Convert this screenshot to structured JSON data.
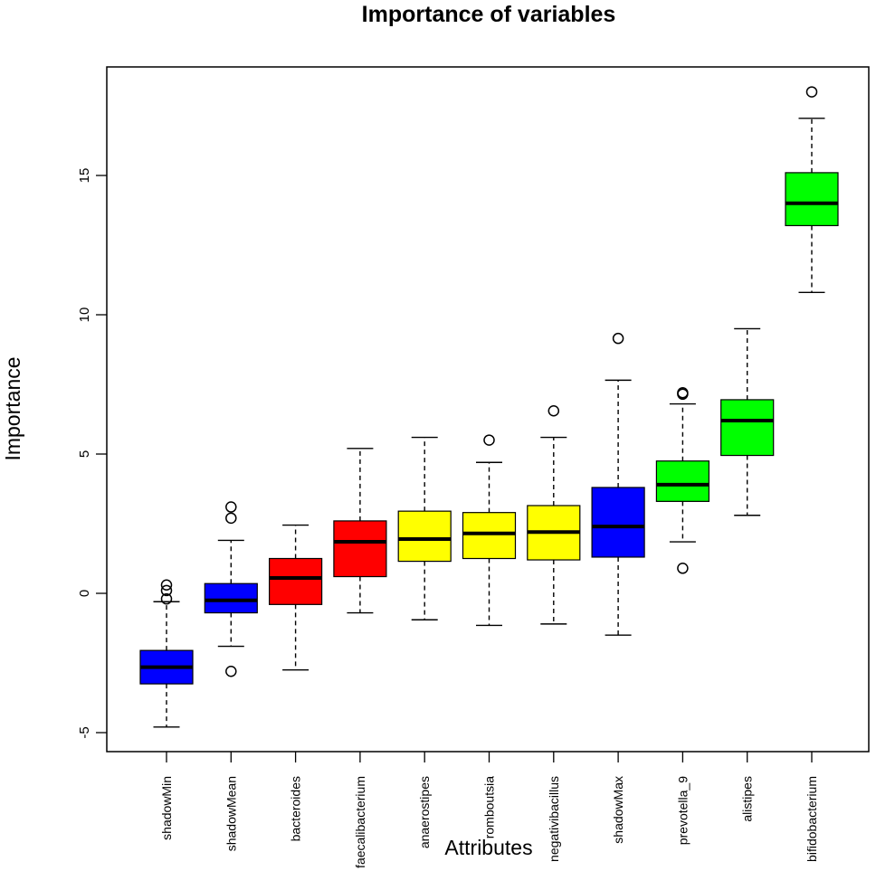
{
  "chart_data": {
    "type": "boxplot",
    "title": "Importance of variables",
    "xlabel": "Attributes",
    "ylabel": "Importance",
    "ylim": [
      -5.5,
      19
    ],
    "yticks": [
      -5,
      0,
      5,
      10,
      15
    ],
    "grid": false,
    "colors": {
      "shadow": "#0000ff",
      "rejected": "#ff0000",
      "tentative": "#ffff00",
      "confirmed": "#00ff00"
    },
    "boxes": [
      {
        "name": "shadowMin",
        "color": "#0000ff",
        "whisker_low": -4.8,
        "q1": -3.25,
        "median": -2.65,
        "q3": -2.05,
        "whisker_high": -0.3,
        "outliers": [
          -0.2,
          0.1,
          0.3
        ]
      },
      {
        "name": "shadowMean",
        "color": "#0000ff",
        "whisker_low": -1.9,
        "q1": -0.7,
        "median": -0.25,
        "q3": 0.35,
        "whisker_high": 1.9,
        "outliers": [
          -2.8,
          2.7,
          3.1
        ]
      },
      {
        "name": "bacteroides",
        "color": "#ff0000",
        "whisker_low": -2.75,
        "q1": -0.4,
        "median": 0.55,
        "q3": 1.25,
        "whisker_high": 2.45,
        "outliers": []
      },
      {
        "name": "faecalibacterium",
        "color": "#ff0000",
        "whisker_low": -0.7,
        "q1": 0.6,
        "median": 1.85,
        "q3": 2.6,
        "whisker_high": 5.2,
        "outliers": []
      },
      {
        "name": "anaerostipes",
        "color": "#ffff00",
        "whisker_low": -0.95,
        "q1": 1.15,
        "median": 1.95,
        "q3": 2.95,
        "whisker_high": 5.6,
        "outliers": []
      },
      {
        "name": "romboutsia",
        "color": "#ffff00",
        "whisker_low": -1.15,
        "q1": 1.25,
        "median": 2.15,
        "q3": 2.9,
        "whisker_high": 4.7,
        "outliers": [
          5.5
        ]
      },
      {
        "name": "negativibacillus",
        "color": "#ffff00",
        "whisker_low": -1.1,
        "q1": 1.2,
        "median": 2.2,
        "q3": 3.15,
        "whisker_high": 5.6,
        "outliers": [
          6.55
        ]
      },
      {
        "name": "shadowMax",
        "color": "#0000ff",
        "whisker_low": -1.5,
        "q1": 1.3,
        "median": 2.4,
        "q3": 3.8,
        "whisker_high": 7.65,
        "outliers": [
          9.15
        ]
      },
      {
        "name": "prevotella_9",
        "color": "#00ff00",
        "whisker_low": 1.85,
        "q1": 3.3,
        "median": 3.9,
        "q3": 4.75,
        "whisker_high": 6.8,
        "outliers": [
          0.9,
          7.15,
          7.2
        ]
      },
      {
        "name": "alistipes",
        "color": "#00ff00",
        "whisker_low": 2.8,
        "q1": 4.95,
        "median": 6.2,
        "q3": 6.95,
        "whisker_high": 9.5,
        "outliers": []
      },
      {
        "name": "bifidobacterium",
        "color": "#00ff00",
        "whisker_low": 10.8,
        "q1": 13.2,
        "median": 14.0,
        "q3": 15.1,
        "whisker_high": 17.05,
        "outliers": [
          18.0
        ]
      }
    ]
  }
}
